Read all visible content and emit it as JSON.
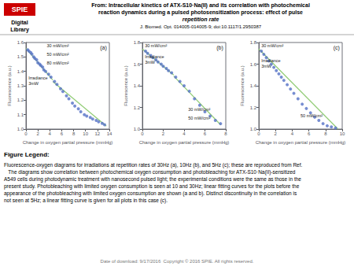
{
  "title": [
    "From: Intracellular kinetics of ATX-S10·Na(II) and its correlation with photochemical",
    "reaction dynamics during a pulsed photosensitization process: effect of pulse",
    "repetition rate"
  ],
  "subtitle": "J. Biomed. Opt. 014005-014005-9; doi:10.1117/1.2950387",
  "annotations": [
    "SPIE",
    "Digital",
    "Library",
    "Figure Legend:",
    "Fluorescence-oxygen diagrams for irradiations at repetition rates of 30Hz (a), 10Hz (b), and 5Hz (c); these are reproduced from Ref.\n   The diagrams show correlation between photochemical oxygen consumption and photobleaching for ATX-S10·Na(II)-sensitized\nA549 cells during photodynamic treatment with nanosecond pulsed light; the experimental conditions were the same as those in the\npresent study. Photobleaching with limited oxygen consumption is seen at 10 and 30Hz; linear fitting curves for the plots before the\nappearance of the photobleaching with limited oxygen consumption are shown (a and b). Distinct discontinuity in the correlation is\nnot seen at 5Hz; a linear fitting curve is given for all plots in this case (c).",
    "Date of download: 9/17/2016  Copyright © 2016 SPIE. All rights reserved."
  ],
  "chart_data": [
    {
      "type": "scatter",
      "x_label": "Change in oxygen partial pressure (mmHg)",
      "y_label": "Fluorescence (a.u.)",
      "annotations": [
        "(a)",
        "30 mW/cm²",
        "50 mW/cm²",
        "80 mW/cm²",
        "Irradiance\n3mW"
      ],
      "xlim": [
        0,
        14
      ],
      "ylim": [
        1.0,
        1.6
      ],
      "xticks": [
        0,
        2,
        4,
        6,
        8,
        10,
        12,
        14
      ],
      "yticks": [
        {
          "value": 1.0,
          "label": "1.0"
        },
        1.1,
        1.2,
        1.3,
        1.4,
        1.5,
        1.6
      ],
      "grid": false,
      "series": [
        {
          "type": "scatter",
          "x": [
            0.3,
            0.5,
            0.8,
            1.0,
            1.3,
            1.5,
            1.8,
            2.0,
            2.3,
            2.5,
            2.8,
            3.0,
            3.3,
            3.8,
            4.2,
            4.8,
            5.2,
            5.8,
            6.2,
            6.8,
            7.2,
            7.8,
            8.2,
            8.8,
            9.2,
            9.8,
            10.2,
            10.8,
            11.2,
            11.8,
            12.2,
            12.8,
            13.2
          ],
          "values": [
            1.55,
            1.54,
            1.53,
            1.52,
            1.5,
            1.49,
            1.48,
            1.46,
            1.45,
            1.44,
            1.43,
            1.41,
            1.4,
            1.38,
            1.36,
            1.33,
            1.31,
            1.28,
            1.26,
            1.23,
            1.21,
            1.18,
            1.16,
            1.14,
            1.12,
            1.1,
            1.09,
            1.08,
            1.07,
            1.06,
            1.05,
            1.04,
            1.03
          ]
        },
        {
          "type": "line",
          "x": [
            0,
            4.5
          ],
          "values": [
            1.56,
            1.34
          ]
        },
        {
          "type": "line",
          "x": [
            4.5,
            13.5
          ],
          "values": [
            1.33,
            1.02
          ]
        }
      ]
    },
    {
      "type": "scatter",
      "x_label": "Change in oxygen partial pressure (mmHg)",
      "y_label": "Fluorescence (a.u.)",
      "annotations": [
        "(b)",
        "Irradiance\n3mW",
        "30 mW/cm²",
        "30 mW/cm²",
        "50 mW/cm²"
      ],
      "xlim": [
        0,
        8
      ],
      "ylim": [
        1.0,
        1.8
      ],
      "xticks": [
        0,
        2,
        4,
        6,
        8
      ],
      "yticks": [
        {
          "value": 1.0,
          "label": "1.0"
        },
        1.2,
        1.4,
        1.6,
        1.8
      ],
      "grid": false,
      "series": [
        {
          "type": "scatter",
          "x": [
            0.3,
            0.5,
            0.8,
            1.0,
            1.3,
            1.5,
            1.8,
            2.0,
            2.3,
            2.5,
            2.8,
            3.2,
            3.6,
            4.0,
            4.5,
            5.0,
            5.5,
            6.0,
            6.5,
            7.0,
            7.5
          ],
          "values": [
            1.72,
            1.7,
            1.68,
            1.66,
            1.64,
            1.62,
            1.6,
            1.58,
            1.56,
            1.54,
            1.52,
            1.48,
            1.44,
            1.4,
            1.35,
            1.28,
            1.22,
            1.16,
            1.12,
            1.08,
            1.05
          ]
        },
        {
          "type": "line",
          "x": [
            0,
            3.0
          ],
          "values": [
            1.74,
            1.5
          ]
        },
        {
          "type": "line",
          "x": [
            3.0,
            7.5
          ],
          "values": [
            1.49,
            1.04
          ]
        }
      ]
    },
    {
      "type": "scatter",
      "x_label": "Change in oxygen partial pressure (mmHg)",
      "y_label": "Fluorescence (a.u.)",
      "annotations": [
        "(c)",
        "30 mW/cm²",
        "Irradiance\n3mW",
        "50 mW/cm²"
      ],
      "xlim": [
        0,
        10
      ],
      "ylim": [
        1.0,
        1.8
      ],
      "xticks": [
        0,
        2,
        4,
        6,
        8,
        10
      ],
      "yticks": [
        {
          "value": 1.0,
          "label": "1.0"
        },
        1.2,
        1.4,
        1.6,
        1.8
      ],
      "grid": false,
      "series": [
        {
          "type": "scatter",
          "x": [
            0.3,
            0.6,
            0.9,
            1.2,
            1.5,
            1.8,
            2.1,
            2.4,
            2.7,
            3.0,
            3.4,
            3.8,
            4.2,
            4.7,
            5.2,
            5.7,
            6.2,
            6.7,
            7.2,
            7.7,
            8.2,
            8.7,
            9.2
          ],
          "values": [
            1.72,
            1.69,
            1.66,
            1.63,
            1.6,
            1.57,
            1.54,
            1.51,
            1.48,
            1.45,
            1.41,
            1.37,
            1.33,
            1.28,
            1.23,
            1.19,
            1.15,
            1.11,
            1.08,
            1.05,
            1.03,
            1.02,
            1.01
          ]
        },
        {
          "type": "line",
          "x": [
            0,
            9.5
          ],
          "values": [
            1.74,
            1.0
          ]
        }
      ]
    }
  ]
}
